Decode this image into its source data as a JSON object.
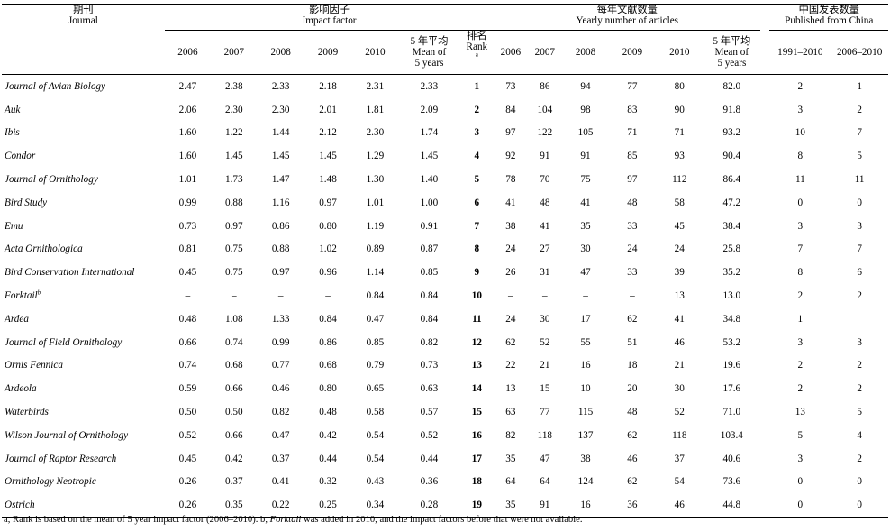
{
  "header": {
    "journal_cn": "期刊",
    "journal_en": "Journal",
    "impact_cn": "影响因子",
    "impact_en": "Impact factor",
    "articles_cn": "每年文献数量",
    "articles_en": "Yearly number of articles",
    "china_cn": "中国发表数量",
    "china_en": "Published from China",
    "years": [
      "2006",
      "2007",
      "2008",
      "2009",
      "2010"
    ],
    "mean_cn": "5 年平均",
    "mean_en_1": "Mean of",
    "mean_en_2": "5 years",
    "rank_cn": "排名",
    "rank_en": "Rank",
    "rank_sup": "a",
    "china_periods": [
      "1991–2010",
      "2006–2010"
    ]
  },
  "rows": [
    {
      "journal": "Journal of Avian Biology",
      "sup": "",
      "if": [
        "2.47",
        "2.38",
        "2.33",
        "2.18",
        "2.31"
      ],
      "if_mean": "2.33",
      "rank": "1",
      "art": [
        "73",
        "86",
        "94",
        "77",
        "80"
      ],
      "art_mean": "82.0",
      "cn": [
        "2",
        "1"
      ]
    },
    {
      "journal": "Auk",
      "sup": "",
      "if": [
        "2.06",
        "2.30",
        "2.30",
        "2.01",
        "1.81"
      ],
      "if_mean": "2.09",
      "rank": "2",
      "art": [
        "84",
        "104",
        "98",
        "83",
        "90"
      ],
      "art_mean": "91.8",
      "cn": [
        "3",
        "2"
      ]
    },
    {
      "journal": "Ibis",
      "sup": "",
      "if": [
        "1.60",
        "1.22",
        "1.44",
        "2.12",
        "2.30"
      ],
      "if_mean": "1.74",
      "rank": "3",
      "art": [
        "97",
        "122",
        "105",
        "71",
        "71"
      ],
      "art_mean": "93.2",
      "cn": [
        "10",
        "7"
      ]
    },
    {
      "journal": "Condor",
      "sup": "",
      "if": [
        "1.60",
        "1.45",
        "1.45",
        "1.45",
        "1.29"
      ],
      "if_mean": "1.45",
      "rank": "4",
      "art": [
        "92",
        "91",
        "91",
        "85",
        "93"
      ],
      "art_mean": "90.4",
      "cn": [
        "8",
        "5"
      ]
    },
    {
      "journal": "Journal of Ornithology",
      "sup": "",
      "if": [
        "1.01",
        "1.73",
        "1.47",
        "1.48",
        "1.30"
      ],
      "if_mean": "1.40",
      "rank": "5",
      "art": [
        "78",
        "70",
        "75",
        "97",
        "112"
      ],
      "art_mean": "86.4",
      "cn": [
        "11",
        "11"
      ]
    },
    {
      "journal": "Bird Study",
      "sup": "",
      "if": [
        "0.99",
        "0.88",
        "1.16",
        "0.97",
        "1.01"
      ],
      "if_mean": "1.00",
      "rank": "6",
      "art": [
        "41",
        "48",
        "41",
        "48",
        "58"
      ],
      "art_mean": "47.2",
      "cn": [
        "0",
        "0"
      ]
    },
    {
      "journal": "Emu",
      "sup": "",
      "if": [
        "0.73",
        "0.97",
        "0.86",
        "0.80",
        "1.19"
      ],
      "if_mean": "0.91",
      "rank": "7",
      "art": [
        "38",
        "41",
        "35",
        "33",
        "45"
      ],
      "art_mean": "38.4",
      "cn": [
        "3",
        "3"
      ]
    },
    {
      "journal": "Acta Ornithologica",
      "sup": "",
      "if": [
        "0.81",
        "0.75",
        "0.88",
        "1.02",
        "0.89"
      ],
      "if_mean": "0.87",
      "rank": "8",
      "art": [
        "24",
        "27",
        "30",
        "24",
        "24"
      ],
      "art_mean": "25.8",
      "cn": [
        "7",
        "7"
      ]
    },
    {
      "journal": "Bird Conservation International",
      "sup": "",
      "if": [
        "0.45",
        "0.75",
        "0.97",
        "0.96",
        "1.14"
      ],
      "if_mean": "0.85",
      "rank": "9",
      "art": [
        "26",
        "31",
        "47",
        "33",
        "39"
      ],
      "art_mean": "35.2",
      "cn": [
        "8",
        "6"
      ]
    },
    {
      "journal": "Forktail",
      "sup": "b",
      "if": [
        "–",
        "–",
        "–",
        "–",
        "0.84"
      ],
      "if_mean": "0.84",
      "rank": "10",
      "art": [
        "–",
        "–",
        "–",
        "–",
        "13"
      ],
      "art_mean": "13.0",
      "cn": [
        "2",
        "2"
      ]
    },
    {
      "journal": "Ardea",
      "sup": "",
      "if": [
        "0.48",
        "1.08",
        "1.33",
        "0.84",
        "0.47"
      ],
      "if_mean": "0.84",
      "rank": "11",
      "art": [
        "24",
        "30",
        "17",
        "62",
        "41"
      ],
      "art_mean": "34.8",
      "cn": [
        "1",
        ""
      ]
    },
    {
      "journal": "Journal of Field Ornithology",
      "sup": "",
      "if": [
        "0.66",
        "0.74",
        "0.99",
        "0.86",
        "0.85"
      ],
      "if_mean": "0.82",
      "rank": "12",
      "art": [
        "62",
        "52",
        "55",
        "51",
        "46"
      ],
      "art_mean": "53.2",
      "cn": [
        "3",
        "3"
      ]
    },
    {
      "journal": "Ornis Fennica",
      "sup": "",
      "if": [
        "0.74",
        "0.68",
        "0.77",
        "0.68",
        "0.79"
      ],
      "if_mean": "0.73",
      "rank": "13",
      "art": [
        "22",
        "21",
        "16",
        "18",
        "21"
      ],
      "art_mean": "19.6",
      "cn": [
        "2",
        "2"
      ]
    },
    {
      "journal": "Ardeola",
      "sup": "",
      "if": [
        "0.59",
        "0.66",
        "0.46",
        "0.80",
        "0.65"
      ],
      "if_mean": "0.63",
      "rank": "14",
      "art": [
        "13",
        "15",
        "10",
        "20",
        "30"
      ],
      "art_mean": "17.6",
      "cn": [
        "2",
        "2"
      ]
    },
    {
      "journal": "Waterbirds",
      "sup": "",
      "if": [
        "0.50",
        "0.50",
        "0.82",
        "0.48",
        "0.58"
      ],
      "if_mean": "0.57",
      "rank": "15",
      "art": [
        "63",
        "77",
        "115",
        "48",
        "52"
      ],
      "art_mean": "71.0",
      "cn": [
        "13",
        "5"
      ]
    },
    {
      "journal": "Wilson Journal of Ornithology",
      "sup": "",
      "if": [
        "0.52",
        "0.66",
        "0.47",
        "0.42",
        "0.54"
      ],
      "if_mean": "0.52",
      "rank": "16",
      "art": [
        "82",
        "118",
        "137",
        "62",
        "118"
      ],
      "art_mean": "103.4",
      "cn": [
        "5",
        "4"
      ]
    },
    {
      "journal": "Journal of Raptor Research",
      "sup": "",
      "if": [
        "0.45",
        "0.42",
        "0.37",
        "0.44",
        "0.54"
      ],
      "if_mean": "0.44",
      "rank": "17",
      "art": [
        "35",
        "47",
        "38",
        "46",
        "37"
      ],
      "art_mean": "40.6",
      "cn": [
        "3",
        "2"
      ]
    },
    {
      "journal": "Ornithology Neotropic",
      "sup": "",
      "if": [
        "0.26",
        "0.37",
        "0.41",
        "0.32",
        "0.43"
      ],
      "if_mean": "0.36",
      "rank": "18",
      "art": [
        "64",
        "64",
        "124",
        "62",
        "54"
      ],
      "art_mean": "73.6",
      "cn": [
        "0",
        "0"
      ]
    },
    {
      "journal": "Ostrich",
      "sup": "",
      "if": [
        "0.26",
        "0.35",
        "0.22",
        "0.25",
        "0.34"
      ],
      "if_mean": "0.28",
      "rank": "19",
      "art": [
        "35",
        "91",
        "16",
        "36",
        "46"
      ],
      "art_mean": "44.8",
      "cn": [
        "0",
        "0"
      ]
    }
  ],
  "footnote": {
    "part1": "a, Rank is based on the mean of 5 year impact factor (2006–2010). b, ",
    "italic": "Forktail",
    "part2": " was added in 2010, and the impact factors before that were not available."
  }
}
